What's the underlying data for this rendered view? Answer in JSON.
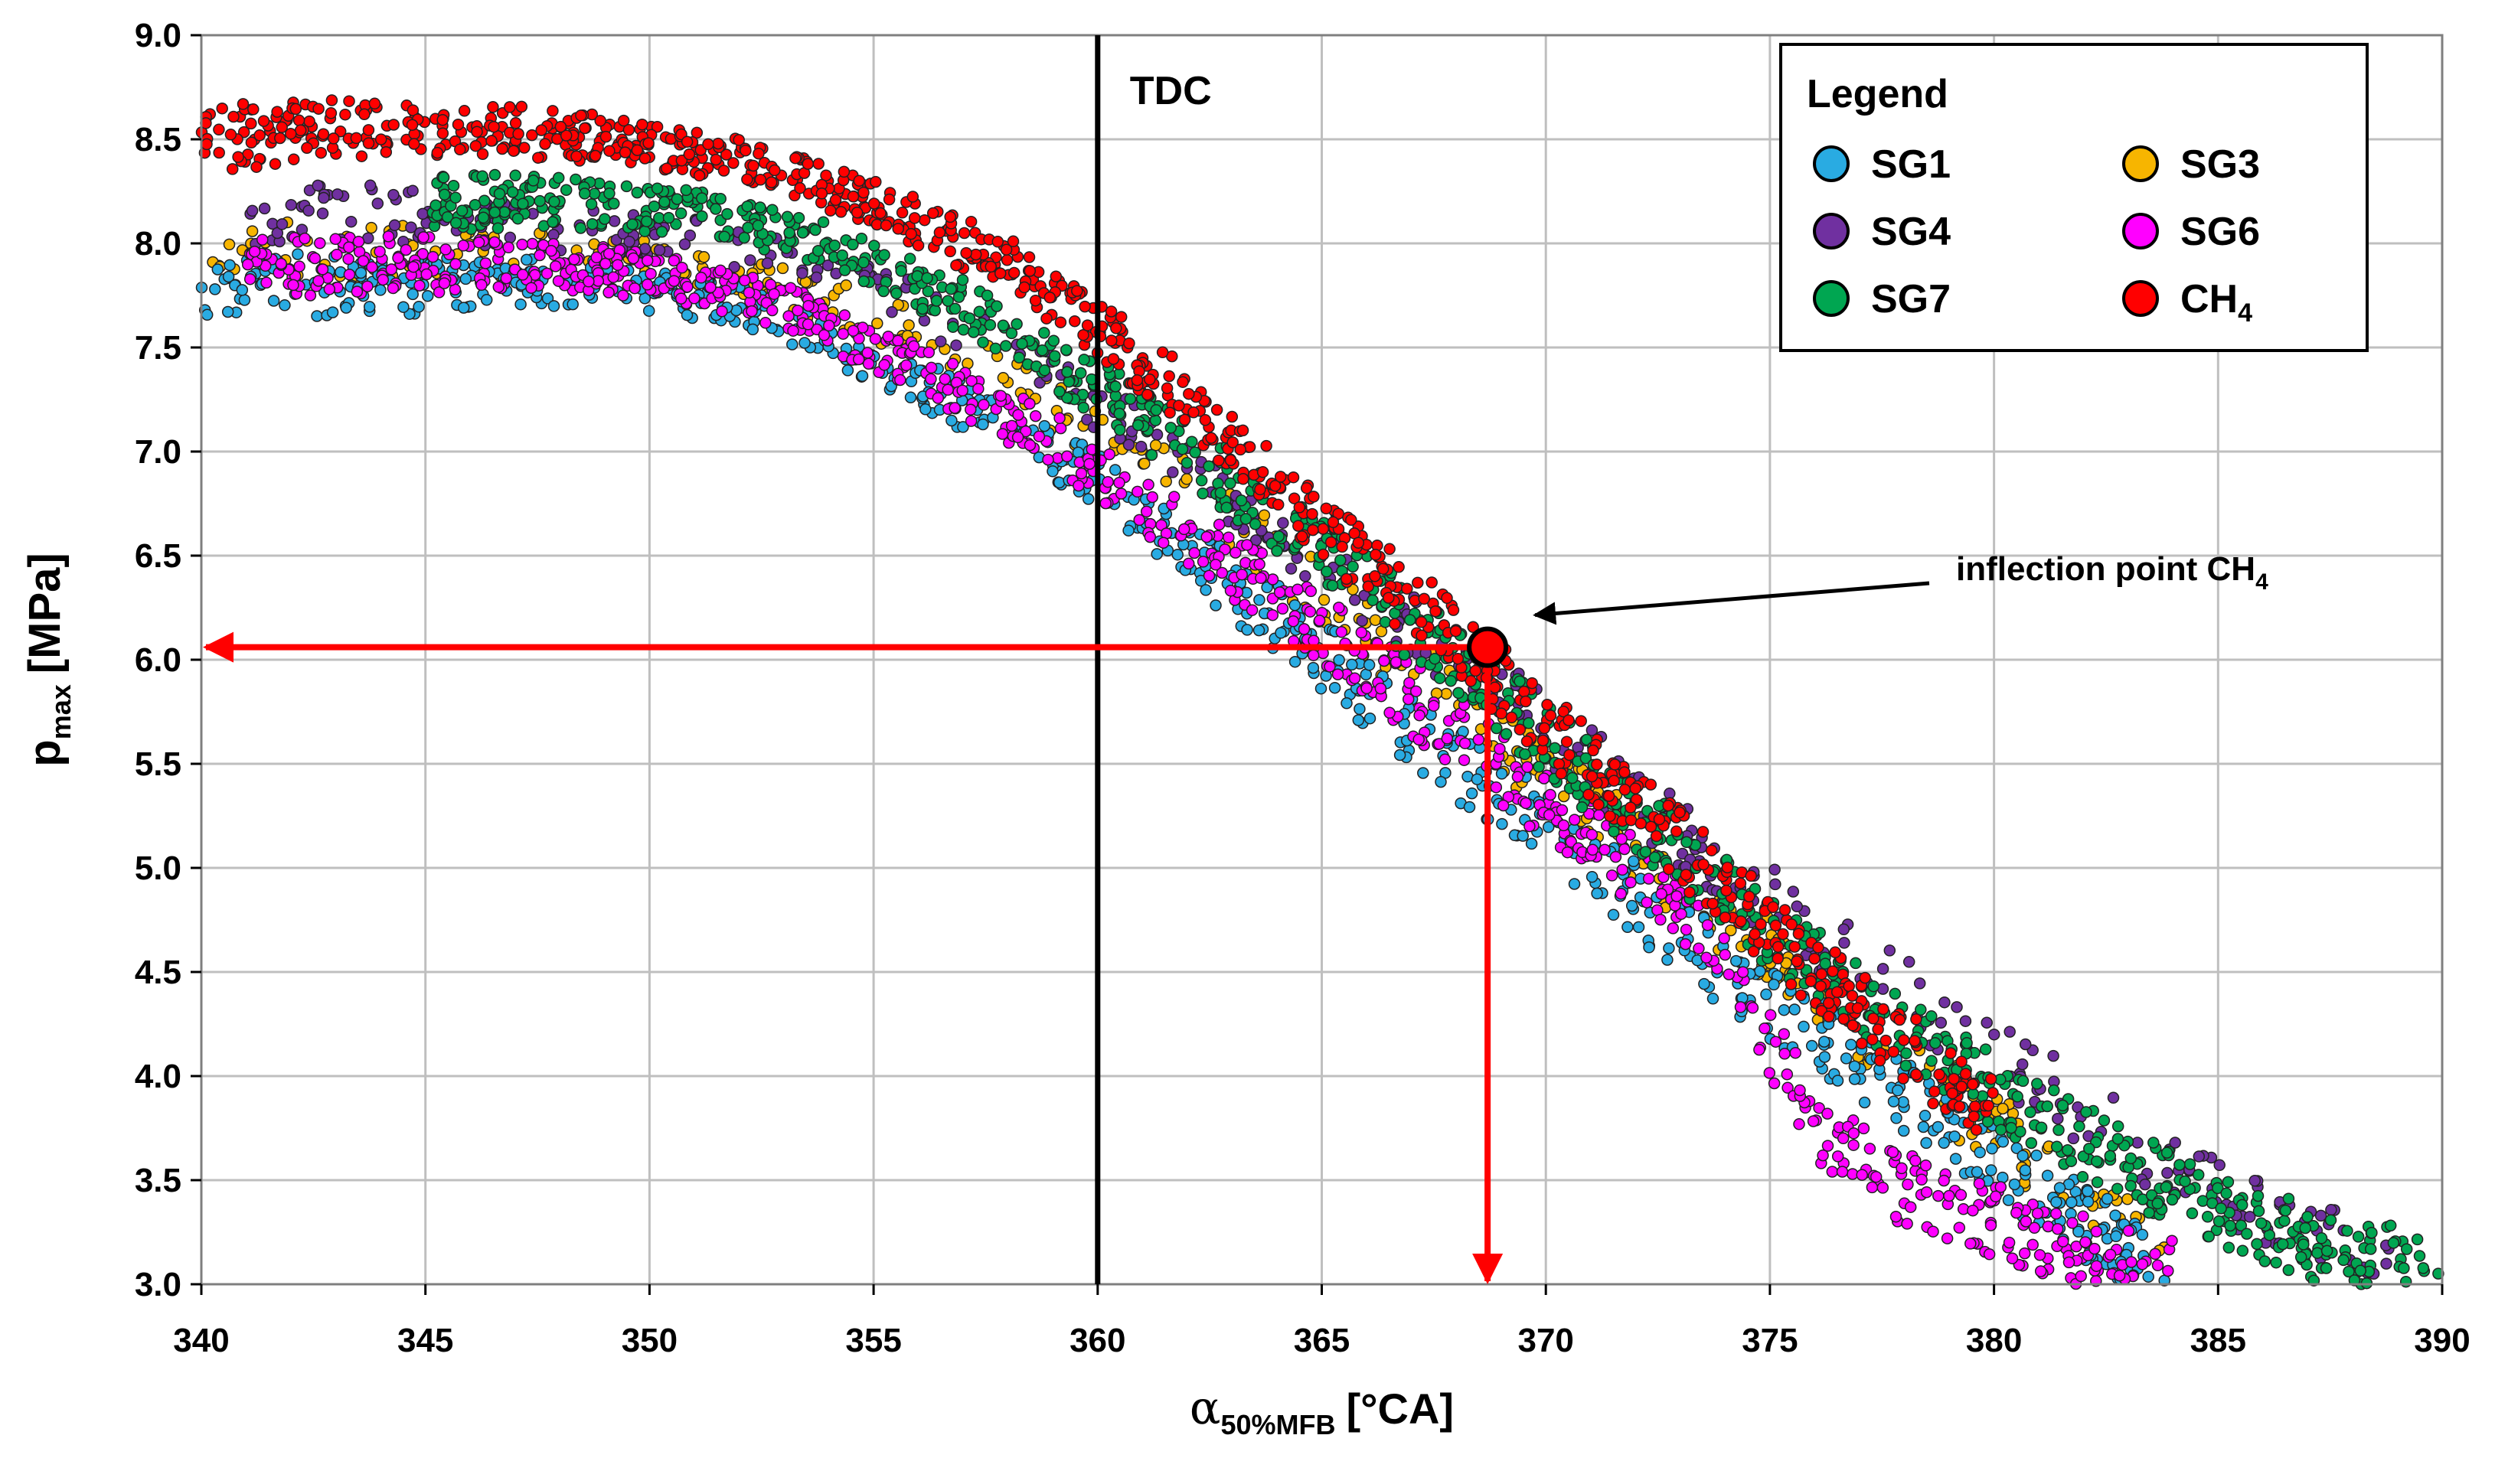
{
  "chart_data": {
    "type": "scatter",
    "title": "",
    "xlabel": {
      "symbol": "α",
      "subscript": "50%MFB",
      "unit": "[°CA]"
    },
    "ylabel": {
      "symbol": "p",
      "subscript": "max",
      "unit": "[MPa]"
    },
    "xlim": [
      340,
      390
    ],
    "ylim": [
      3.0,
      9.0
    ],
    "xticks": [
      "340",
      "345",
      "350",
      "355",
      "360",
      "365",
      "370",
      "375",
      "380",
      "385",
      "390"
    ],
    "yticks": [
      "3.0",
      "3.5",
      "4.0",
      "4.5",
      "5.0",
      "5.5",
      "6.0",
      "6.5",
      "7.0",
      "7.5",
      "8.0",
      "8.5",
      "9.0"
    ],
    "grid": true,
    "legend": {
      "title": "Legend",
      "placement": "top-right",
      "entries": [
        {
          "id": "sg1",
          "label": "SG1",
          "color": "#29ABE2"
        },
        {
          "id": "sg3",
          "label": "SG3",
          "color": "#F7B500"
        },
        {
          "id": "sg4",
          "label": "SG4",
          "color": "#7030A0"
        },
        {
          "id": "sg6",
          "label": "SG6",
          "color": "#FF00FF"
        },
        {
          "id": "sg7",
          "label": "SG7",
          "color": "#00A651"
        },
        {
          "id": "ch4",
          "label": "CH",
          "label_sub": "4",
          "color": "#FF0000"
        }
      ]
    },
    "series": [
      {
        "name": "SG1",
        "color": "#29ABE2",
        "x": [
          340,
          343,
          346,
          349,
          352,
          355,
          358,
          360,
          362,
          364,
          366,
          368,
          370,
          372,
          374,
          376,
          378,
          380,
          382,
          384
        ],
        "y": [
          7.8,
          7.8,
          7.8,
          7.8,
          7.7,
          7.45,
          7.1,
          6.85,
          6.5,
          6.2,
          5.85,
          5.5,
          5.2,
          4.85,
          4.5,
          4.2,
          3.9,
          3.6,
          3.3,
          3.05
        ]
      },
      {
        "name": "SG3",
        "color": "#F7B500",
        "x": [
          340,
          343,
          346,
          349,
          352,
          355,
          358,
          360,
          362,
          364,
          366,
          368,
          370,
          372,
          374,
          376,
          378,
          380,
          382,
          384
        ],
        "y": [
          7.95,
          7.95,
          7.95,
          7.95,
          7.85,
          7.65,
          7.35,
          7.1,
          6.8,
          6.5,
          6.15,
          5.8,
          5.45,
          5.1,
          4.75,
          4.4,
          4.05,
          3.75,
          3.45,
          3.15
        ]
      },
      {
        "name": "SG4",
        "color": "#7030A0",
        "x": [
          341,
          344,
          347,
          350,
          353,
          356,
          359,
          362,
          365,
          368,
          371,
          374,
          377,
          380,
          383,
          386,
          389
        ],
        "y": [
          8.15,
          8.15,
          8.1,
          8.05,
          7.95,
          7.7,
          7.35,
          6.95,
          6.5,
          6.0,
          5.5,
          5.0,
          4.55,
          4.1,
          3.7,
          3.35,
          3.05
        ]
      },
      {
        "name": "SG6",
        "color": "#FF00FF",
        "x": [
          341,
          344,
          347,
          350,
          353,
          356,
          359,
          362,
          365,
          368,
          371,
          374,
          376,
          378,
          380,
          382,
          384
        ],
        "y": [
          7.9,
          7.9,
          7.9,
          7.85,
          7.7,
          7.4,
          7.05,
          6.6,
          6.15,
          5.65,
          5.15,
          4.6,
          3.75,
          3.45,
          3.3,
          3.15,
          3.05
        ]
      },
      {
        "name": "SG7",
        "color": "#00A651",
        "x": [
          345,
          348,
          351,
          354,
          357,
          360,
          363,
          366,
          369,
          372,
          375,
          378,
          381,
          384,
          387,
          390
        ],
        "y": [
          8.2,
          8.2,
          8.15,
          8.0,
          7.7,
          7.3,
          6.85,
          6.35,
          5.8,
          5.25,
          4.7,
          4.2,
          3.8,
          3.45,
          3.2,
          3.05
        ]
      },
      {
        "name": "CH4",
        "color": "#FF0000",
        "x": [
          340,
          343,
          346,
          349,
          352,
          355,
          358,
          360,
          362,
          364,
          366,
          368,
          370,
          372,
          374,
          376,
          378,
          380
        ],
        "y": [
          8.5,
          8.55,
          8.55,
          8.5,
          8.4,
          8.2,
          7.9,
          7.6,
          7.25,
          6.85,
          6.45,
          6.1,
          5.7,
          5.3,
          4.9,
          4.5,
          4.15,
          3.8
        ]
      }
    ],
    "tdc_line": {
      "x": 360,
      "label": "TDC"
    },
    "inflection_point": {
      "x": 368.7,
      "y": 6.06,
      "label": "inflection point CH",
      "label_sub": "4"
    }
  }
}
